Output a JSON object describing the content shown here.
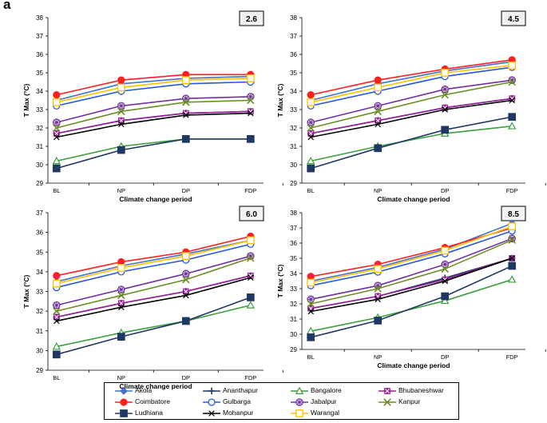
{
  "figure": {
    "panel_label": "a"
  },
  "series_styles": [
    {
      "name": "Akola",
      "color": "#4472C4",
      "marker": "diamond",
      "fill": true
    },
    {
      "name": "Ananthapur",
      "color": "#1F3864",
      "marker": "plus",
      "fill": true
    },
    {
      "name": "Bangalore",
      "color": "#3C9F3C",
      "marker": "triangle",
      "fill": false
    },
    {
      "name": "Bhubaneshwar",
      "color": "#9B1E9B",
      "marker": "xsquare",
      "fill": true
    },
    {
      "name": "Coimbatore",
      "color": "#FF2020",
      "marker": "circle",
      "fill": true
    },
    {
      "name": "Gulbarga",
      "color": "#2659D9",
      "marker": "circle",
      "fill": false
    },
    {
      "name": "Jabalpur",
      "color": "#7030A0",
      "marker": "star",
      "fill": false
    },
    {
      "name": "Kanpur",
      "color": "#6B8E23",
      "marker": "x",
      "fill": false
    },
    {
      "name": "Ludhiana",
      "color": "#1F3864",
      "marker": "square",
      "fill": true
    },
    {
      "name": "Mohanpur",
      "color": "#000000",
      "marker": "xsmall",
      "fill": false
    },
    {
      "name": "Warangal",
      "color": "#FFC000",
      "marker": "square",
      "fill": false
    }
  ],
  "chart_data": [
    {
      "type": "line",
      "title": "2.6",
      "xlabel": "Climate change period",
      "ylabel": "T Max (°C)",
      "categories": [
        "BL",
        "NP",
        "DP",
        "FDP"
      ],
      "ylim": [
        29,
        38
      ],
      "yticks": [
        29,
        30,
        31,
        32,
        33,
        34,
        35,
        36,
        37,
        38
      ],
      "series": [
        {
          "name": "Akola",
          "values": [
            33.5,
            34.4,
            34.7,
            34.8
          ]
        },
        {
          "name": "Ananthapur",
          "values": [
            31.7,
            32.4,
            32.8,
            32.9
          ]
        },
        {
          "name": "Bangalore",
          "values": [
            30.2,
            31.0,
            31.4,
            31.4
          ]
        },
        {
          "name": "Bhubaneshwar",
          "values": [
            31.7,
            32.4,
            32.8,
            32.9
          ]
        },
        {
          "name": "Coimbatore",
          "values": [
            33.8,
            34.6,
            34.9,
            34.9
          ]
        },
        {
          "name": "Gulbarga",
          "values": [
            33.2,
            34.0,
            34.4,
            34.5
          ]
        },
        {
          "name": "Jabalpur",
          "values": [
            32.3,
            33.2,
            33.6,
            33.7
          ]
        },
        {
          "name": "Kanpur",
          "values": [
            32.0,
            32.9,
            33.4,
            33.5
          ]
        },
        {
          "name": "Ludhiana",
          "values": [
            29.8,
            30.8,
            31.4,
            31.4
          ]
        },
        {
          "name": "Mohanpur",
          "values": [
            31.5,
            32.2,
            32.7,
            32.8
          ]
        },
        {
          "name": "Warangal",
          "values": [
            33.4,
            34.2,
            34.6,
            34.7
          ]
        }
      ]
    },
    {
      "type": "line",
      "title": "4.5",
      "xlabel": "Climate change period",
      "ylabel": "T Max (°C)",
      "categories": [
        "BL",
        "NP",
        "DP",
        "FDP"
      ],
      "ylim": [
        29,
        38
      ],
      "yticks": [
        29,
        30,
        31,
        32,
        33,
        34,
        35,
        36,
        37,
        38
      ],
      "series": [
        {
          "name": "Akola",
          "values": [
            33.5,
            34.4,
            35.1,
            35.6
          ]
        },
        {
          "name": "Ananthapur",
          "values": [
            31.7,
            32.4,
            33.1,
            33.6
          ]
        },
        {
          "name": "Bangalore",
          "values": [
            30.2,
            31.0,
            31.7,
            32.1
          ]
        },
        {
          "name": "Bhubaneshwar",
          "values": [
            31.7,
            32.4,
            33.1,
            33.6
          ]
        },
        {
          "name": "Coimbatore",
          "values": [
            33.8,
            34.6,
            35.2,
            35.7
          ]
        },
        {
          "name": "Gulbarga",
          "values": [
            33.2,
            34.0,
            34.8,
            35.3
          ]
        },
        {
          "name": "Jabalpur",
          "values": [
            32.3,
            33.2,
            34.1,
            34.6
          ]
        },
        {
          "name": "Kanpur",
          "values": [
            32.0,
            32.9,
            33.8,
            34.5
          ]
        },
        {
          "name": "Ludhiana",
          "values": [
            29.8,
            30.9,
            31.9,
            32.6
          ]
        },
        {
          "name": "Mohanpur",
          "values": [
            31.5,
            32.2,
            33.0,
            33.5
          ]
        },
        {
          "name": "Warangal",
          "values": [
            33.4,
            34.2,
            35.0,
            35.4
          ]
        }
      ]
    },
    {
      "type": "line",
      "title": "6.0",
      "xlabel": "Climate change period",
      "ylabel": "T Max (°C)",
      "categories": [
        "BL",
        "NP",
        "DP",
        "FDP"
      ],
      "ylim": [
        29,
        37
      ],
      "yticks": [
        29,
        30,
        31,
        32,
        33,
        34,
        35,
        36,
        37
      ],
      "series": [
        {
          "name": "Akola",
          "values": [
            33.5,
            34.3,
            34.9,
            35.6
          ]
        },
        {
          "name": "Ananthapur",
          "values": [
            31.7,
            32.4,
            33.0,
            33.8
          ]
        },
        {
          "name": "Bangalore",
          "values": [
            30.2,
            30.9,
            31.5,
            32.3
          ]
        },
        {
          "name": "Bhubaneshwar",
          "values": [
            31.7,
            32.4,
            33.0,
            33.8
          ]
        },
        {
          "name": "Coimbatore",
          "values": [
            33.8,
            34.5,
            35.0,
            35.8
          ]
        },
        {
          "name": "Gulbarga",
          "values": [
            33.2,
            34.0,
            34.6,
            35.4
          ]
        },
        {
          "name": "Jabalpur",
          "values": [
            32.3,
            33.1,
            33.9,
            34.8
          ]
        },
        {
          "name": "Kanpur",
          "values": [
            32.0,
            32.8,
            33.6,
            34.7
          ]
        },
        {
          "name": "Ludhiana",
          "values": [
            29.8,
            30.7,
            31.5,
            32.7
          ]
        },
        {
          "name": "Mohanpur",
          "values": [
            31.5,
            32.2,
            32.8,
            33.7
          ]
        },
        {
          "name": "Warangal",
          "values": [
            33.4,
            34.2,
            34.8,
            35.6
          ]
        }
      ]
    },
    {
      "type": "line",
      "title": "8.5",
      "xlabel": "Climate change period",
      "ylabel": "T Max (°C)",
      "categories": [
        "BL",
        "NP",
        "DP",
        "FDP"
      ],
      "ylim": [
        29,
        38
      ],
      "yticks": [
        29,
        30,
        31,
        32,
        33,
        34,
        35,
        36,
        37,
        38
      ],
      "series": [
        {
          "name": "Akola",
          "values": [
            33.5,
            34.4,
            35.6,
            37.3
          ]
        },
        {
          "name": "Ananthapur",
          "values": [
            31.7,
            32.5,
            33.7,
            35.0
          ]
        },
        {
          "name": "Bangalore",
          "values": [
            30.2,
            31.1,
            32.2,
            33.6
          ]
        },
        {
          "name": "Bhubaneshwar",
          "values": [
            31.7,
            32.5,
            33.6,
            35.0
          ]
        },
        {
          "name": "Coimbatore",
          "values": [
            33.8,
            34.6,
            35.7,
            37.0
          ]
        },
        {
          "name": "Gulbarga",
          "values": [
            33.2,
            34.1,
            35.3,
            36.8
          ]
        },
        {
          "name": "Jabalpur",
          "values": [
            32.3,
            33.2,
            34.6,
            36.3
          ]
        },
        {
          "name": "Kanpur",
          "values": [
            32.0,
            33.0,
            34.3,
            36.2
          ]
        },
        {
          "name": "Ludhiana",
          "values": [
            29.8,
            30.9,
            32.5,
            34.5
          ]
        },
        {
          "name": "Mohanpur",
          "values": [
            31.5,
            32.3,
            33.5,
            35.0
          ]
        },
        {
          "name": "Warangal",
          "values": [
            33.4,
            34.3,
            35.5,
            37.1
          ]
        }
      ]
    }
  ]
}
